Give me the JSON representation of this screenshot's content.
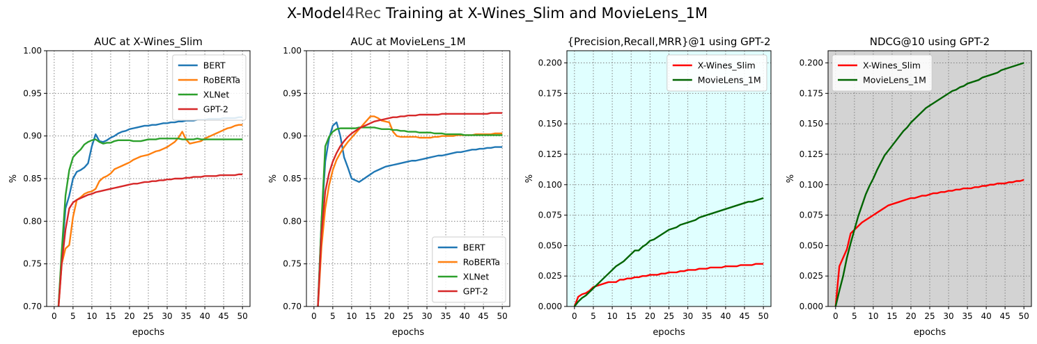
{
  "figure": {
    "title_main": "X-Model",
    "title_accent": "4Rec",
    "title_rest": " Training at X-Wines_Slim and MovieLens_1M"
  },
  "chart_data": [
    {
      "type": "line",
      "title": "AUC at X-Wines_Slim",
      "xlabel": "epochs",
      "ylabel": "%",
      "xlim": [
        -2,
        52
      ],
      "ylim": [
        0.7,
        1.0
      ],
      "xticks": [
        0,
        5,
        10,
        15,
        20,
        25,
        30,
        35,
        40,
        45,
        50
      ],
      "yticks": [
        0.7,
        0.75,
        0.8,
        0.85,
        0.9,
        0.95,
        1.0
      ],
      "tick_decimals": 2,
      "background": "#ffffff",
      "legend": "top-right",
      "grid": true,
      "x": [
        1,
        2,
        3,
        4,
        5,
        6,
        7,
        8,
        9,
        10,
        11,
        12,
        13,
        14,
        15,
        16,
        17,
        18,
        19,
        20,
        21,
        22,
        23,
        24,
        25,
        26,
        27,
        28,
        29,
        30,
        31,
        32,
        33,
        34,
        35,
        36,
        37,
        38,
        39,
        40,
        41,
        42,
        43,
        44,
        45,
        46,
        47,
        48,
        49,
        50
      ],
      "series": [
        {
          "name": "BERT",
          "color": "#1f77b4",
          "values": [
            0.69,
            0.76,
            0.815,
            0.83,
            0.85,
            0.858,
            0.86,
            0.863,
            0.868,
            0.888,
            0.902,
            0.894,
            0.893,
            0.895,
            0.898,
            0.9,
            0.903,
            0.905,
            0.906,
            0.908,
            0.909,
            0.91,
            0.911,
            0.912,
            0.912,
            0.913,
            0.913,
            0.914,
            0.915,
            0.915,
            0.916,
            0.916,
            0.917,
            0.917,
            0.918,
            0.918,
            0.918,
            0.919,
            0.919,
            0.919,
            0.92,
            0.92,
            0.92,
            0.92,
            0.921,
            0.921,
            0.921,
            0.921,
            0.922,
            0.922
          ]
        },
        {
          "name": "RoBERTa",
          "color": "#ff7f0e",
          "values": [
            0.69,
            0.75,
            0.768,
            0.772,
            0.805,
            0.825,
            0.828,
            0.832,
            0.834,
            0.835,
            0.838,
            0.847,
            0.851,
            0.853,
            0.856,
            0.861,
            0.863,
            0.865,
            0.867,
            0.869,
            0.872,
            0.874,
            0.876,
            0.877,
            0.878,
            0.88,
            0.882,
            0.883,
            0.885,
            0.887,
            0.89,
            0.893,
            0.898,
            0.905,
            0.896,
            0.891,
            0.892,
            0.893,
            0.894,
            0.897,
            0.899,
            0.901,
            0.903,
            0.905,
            0.907,
            0.909,
            0.91,
            0.912,
            0.913,
            0.913
          ]
        },
        {
          "name": "XLNet",
          "color": "#2ca02c",
          "values": [
            0.69,
            0.765,
            0.83,
            0.86,
            0.875,
            0.88,
            0.884,
            0.89,
            0.893,
            0.895,
            0.896,
            0.893,
            0.891,
            0.892,
            0.892,
            0.894,
            0.895,
            0.895,
            0.895,
            0.895,
            0.894,
            0.894,
            0.894,
            0.895,
            0.896,
            0.896,
            0.896,
            0.897,
            0.897,
            0.897,
            0.897,
            0.897,
            0.897,
            0.896,
            0.896,
            0.896,
            0.896,
            0.897,
            0.896,
            0.896,
            0.896,
            0.896,
            0.896,
            0.896,
            0.896,
            0.896,
            0.896,
            0.896,
            0.896,
            0.896
          ]
        },
        {
          "name": "GPT-2",
          "color": "#d62728",
          "values": [
            0.69,
            0.75,
            0.79,
            0.815,
            0.822,
            0.825,
            0.827,
            0.829,
            0.831,
            0.832,
            0.834,
            0.835,
            0.836,
            0.837,
            0.838,
            0.839,
            0.84,
            0.841,
            0.842,
            0.843,
            0.844,
            0.844,
            0.845,
            0.846,
            0.846,
            0.847,
            0.847,
            0.848,
            0.848,
            0.849,
            0.849,
            0.85,
            0.85,
            0.85,
            0.851,
            0.851,
            0.852,
            0.852,
            0.852,
            0.853,
            0.853,
            0.853,
            0.853,
            0.854,
            0.854,
            0.854,
            0.854,
            0.854,
            0.855,
            0.855
          ]
        }
      ]
    },
    {
      "type": "line",
      "title": "AUC at MovieLens_1M",
      "xlabel": "epochs",
      "ylabel": "%",
      "xlim": [
        -2,
        52
      ],
      "ylim": [
        0.7,
        1.0
      ],
      "xticks": [
        0,
        5,
        10,
        15,
        20,
        25,
        30,
        35,
        40,
        45,
        50
      ],
      "yticks": [
        0.7,
        0.75,
        0.8,
        0.85,
        0.9,
        0.95,
        1.0
      ],
      "tick_decimals": 2,
      "background": "#ffffff",
      "legend": "bottom-right",
      "grid": true,
      "x": [
        1,
        2,
        3,
        4,
        5,
        6,
        7,
        8,
        9,
        10,
        11,
        12,
        13,
        14,
        15,
        16,
        17,
        18,
        19,
        20,
        21,
        22,
        23,
        24,
        25,
        26,
        27,
        28,
        29,
        30,
        31,
        32,
        33,
        34,
        35,
        36,
        37,
        38,
        39,
        40,
        41,
        42,
        43,
        44,
        45,
        46,
        47,
        48,
        49,
        50
      ],
      "series": [
        {
          "name": "BERT",
          "color": "#1f77b4",
          "values": [
            0.695,
            0.8,
            0.87,
            0.897,
            0.912,
            0.916,
            0.9,
            0.875,
            0.863,
            0.85,
            0.848,
            0.846,
            0.849,
            0.852,
            0.855,
            0.858,
            0.86,
            0.862,
            0.864,
            0.865,
            0.866,
            0.867,
            0.868,
            0.869,
            0.87,
            0.871,
            0.871,
            0.872,
            0.873,
            0.874,
            0.875,
            0.876,
            0.877,
            0.877,
            0.878,
            0.879,
            0.88,
            0.881,
            0.881,
            0.882,
            0.883,
            0.884,
            0.884,
            0.885,
            0.885,
            0.886,
            0.886,
            0.887,
            0.887,
            0.887
          ]
        },
        {
          "name": "RoBERTa",
          "color": "#ff7f0e",
          "values": [
            0.695,
            0.77,
            0.815,
            0.842,
            0.86,
            0.872,
            0.88,
            0.887,
            0.893,
            0.898,
            0.903,
            0.908,
            0.913,
            0.918,
            0.923,
            0.923,
            0.921,
            0.918,
            0.917,
            0.916,
            0.905,
            0.9,
            0.899,
            0.899,
            0.899,
            0.899,
            0.899,
            0.898,
            0.898,
            0.898,
            0.898,
            0.899,
            0.899,
            0.9,
            0.9,
            0.9,
            0.9,
            0.901,
            0.901,
            0.901,
            0.901,
            0.901,
            0.902,
            0.902,
            0.902,
            0.902,
            0.902,
            0.903,
            0.903,
            0.903
          ]
        },
        {
          "name": "XLNet",
          "color": "#2ca02c",
          "values": [
            0.695,
            0.8,
            0.888,
            0.899,
            0.905,
            0.908,
            0.909,
            0.909,
            0.909,
            0.909,
            0.909,
            0.91,
            0.91,
            0.91,
            0.91,
            0.91,
            0.909,
            0.908,
            0.908,
            0.908,
            0.907,
            0.907,
            0.906,
            0.906,
            0.905,
            0.905,
            0.905,
            0.904,
            0.904,
            0.904,
            0.904,
            0.903,
            0.903,
            0.903,
            0.902,
            0.902,
            0.902,
            0.902,
            0.902,
            0.901,
            0.901,
            0.901,
            0.901,
            0.901,
            0.901,
            0.901,
            0.901,
            0.901,
            0.901,
            0.901
          ]
        },
        {
          "name": "GPT-2",
          "color": "#d62728",
          "values": [
            0.695,
            0.785,
            0.835,
            0.856,
            0.87,
            0.88,
            0.888,
            0.894,
            0.899,
            0.903,
            0.906,
            0.909,
            0.911,
            0.913,
            0.915,
            0.917,
            0.918,
            0.919,
            0.92,
            0.921,
            0.922,
            0.922,
            0.923,
            0.923,
            0.924,
            0.924,
            0.924,
            0.925,
            0.925,
            0.925,
            0.925,
            0.925,
            0.925,
            0.926,
            0.926,
            0.926,
            0.926,
            0.926,
            0.926,
            0.926,
            0.926,
            0.926,
            0.926,
            0.926,
            0.926,
            0.926,
            0.927,
            0.927,
            0.927,
            0.927
          ]
        }
      ]
    },
    {
      "type": "line",
      "title": "{Precision,Recall,MRR}@1 using GPT-2",
      "xlabel": "epochs",
      "ylabel": "%",
      "xlim": [
        -2,
        52
      ],
      "ylim": [
        0.0,
        0.21
      ],
      "xticks": [
        0,
        5,
        10,
        15,
        20,
        25,
        30,
        35,
        40,
        45,
        50
      ],
      "yticks": [
        0.0,
        0.025,
        0.05,
        0.075,
        0.1,
        0.125,
        0.15,
        0.175,
        0.2
      ],
      "tick_decimals": 3,
      "background": "#e0ffff",
      "legend": "top-right",
      "grid": true,
      "x": [
        0,
        1,
        2,
        3,
        4,
        5,
        6,
        7,
        8,
        9,
        10,
        11,
        12,
        13,
        14,
        15,
        16,
        17,
        18,
        19,
        20,
        21,
        22,
        23,
        24,
        25,
        26,
        27,
        28,
        29,
        30,
        31,
        32,
        33,
        34,
        35,
        36,
        37,
        38,
        39,
        40,
        41,
        42,
        43,
        44,
        45,
        46,
        47,
        48,
        49,
        50
      ],
      "series": [
        {
          "name": "X-Wines_Slim",
          "color": "#ff0000",
          "values": [
            0.0,
            0.008,
            0.01,
            0.011,
            0.013,
            0.016,
            0.017,
            0.018,
            0.019,
            0.02,
            0.02,
            0.02,
            0.022,
            0.022,
            0.023,
            0.023,
            0.024,
            0.024,
            0.025,
            0.025,
            0.026,
            0.026,
            0.026,
            0.027,
            0.027,
            0.028,
            0.028,
            0.028,
            0.029,
            0.029,
            0.03,
            0.03,
            0.03,
            0.031,
            0.031,
            0.031,
            0.032,
            0.032,
            0.032,
            0.032,
            0.033,
            0.033,
            0.033,
            0.033,
            0.034,
            0.034,
            0.034,
            0.034,
            0.035,
            0.035,
            0.035
          ]
        },
        {
          "name": "MovieLens_1M",
          "color": "#006400",
          "values": [
            0.0,
            0.004,
            0.007,
            0.009,
            0.012,
            0.015,
            0.018,
            0.021,
            0.024,
            0.027,
            0.03,
            0.033,
            0.035,
            0.037,
            0.04,
            0.043,
            0.046,
            0.046,
            0.049,
            0.051,
            0.054,
            0.055,
            0.057,
            0.059,
            0.061,
            0.063,
            0.064,
            0.065,
            0.067,
            0.068,
            0.069,
            0.07,
            0.071,
            0.073,
            0.074,
            0.075,
            0.076,
            0.077,
            0.078,
            0.079,
            0.08,
            0.081,
            0.082,
            0.083,
            0.084,
            0.085,
            0.086,
            0.086,
            0.087,
            0.088,
            0.089
          ]
        }
      ]
    },
    {
      "type": "line",
      "title": "NDCG@10 using GPT-2",
      "xlabel": "epochs",
      "ylabel": "%",
      "xlim": [
        -2,
        52
      ],
      "ylim": [
        0.0,
        0.21
      ],
      "xticks": [
        0,
        5,
        10,
        15,
        20,
        25,
        30,
        35,
        40,
        45,
        50
      ],
      "yticks": [
        0.0,
        0.025,
        0.05,
        0.075,
        0.1,
        0.125,
        0.15,
        0.175,
        0.2
      ],
      "tick_decimals": 3,
      "background": "#d3d3d3",
      "legend": "top-left",
      "grid": true,
      "x": [
        0,
        1,
        2,
        3,
        4,
        5,
        6,
        7,
        8,
        9,
        10,
        11,
        12,
        13,
        14,
        15,
        16,
        17,
        18,
        19,
        20,
        21,
        22,
        23,
        24,
        25,
        26,
        27,
        28,
        29,
        30,
        31,
        32,
        33,
        34,
        35,
        36,
        37,
        38,
        39,
        40,
        41,
        42,
        43,
        44,
        45,
        46,
        47,
        48,
        49,
        50
      ],
      "series": [
        {
          "name": "X-Wines_Slim",
          "color": "#ff0000",
          "values": [
            0.0,
            0.033,
            0.04,
            0.047,
            0.06,
            0.063,
            0.066,
            0.069,
            0.071,
            0.073,
            0.075,
            0.077,
            0.079,
            0.081,
            0.083,
            0.084,
            0.085,
            0.086,
            0.087,
            0.088,
            0.089,
            0.089,
            0.09,
            0.091,
            0.091,
            0.092,
            0.093,
            0.093,
            0.094,
            0.094,
            0.095,
            0.095,
            0.096,
            0.096,
            0.097,
            0.097,
            0.097,
            0.098,
            0.098,
            0.099,
            0.099,
            0.1,
            0.1,
            0.101,
            0.101,
            0.101,
            0.102,
            0.102,
            0.103,
            0.103,
            0.104
          ]
        },
        {
          "name": "MovieLens_1M",
          "color": "#006400",
          "values": [
            0.0,
            0.013,
            0.025,
            0.04,
            0.052,
            0.063,
            0.074,
            0.083,
            0.092,
            0.099,
            0.105,
            0.112,
            0.118,
            0.124,
            0.128,
            0.132,
            0.136,
            0.14,
            0.144,
            0.147,
            0.151,
            0.154,
            0.157,
            0.16,
            0.163,
            0.165,
            0.167,
            0.169,
            0.171,
            0.173,
            0.175,
            0.177,
            0.178,
            0.18,
            0.181,
            0.183,
            0.184,
            0.185,
            0.186,
            0.188,
            0.189,
            0.19,
            0.191,
            0.192,
            0.194,
            0.195,
            0.196,
            0.197,
            0.198,
            0.199,
            0.2
          ]
        }
      ]
    }
  ]
}
